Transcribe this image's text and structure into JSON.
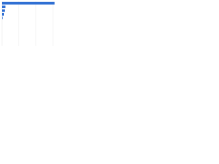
{
  "chart_data": {
    "type": "hbar",
    "categories": [
      null,
      null,
      null,
      null,
      null
    ],
    "values": [
      31,
      2,
      1.6,
      1.2,
      0.3
    ],
    "color": "#2f6fd3",
    "xlim": [
      0,
      38
    ],
    "xticks": [
      0,
      10,
      20,
      30
    ],
    "grid": true
  }
}
